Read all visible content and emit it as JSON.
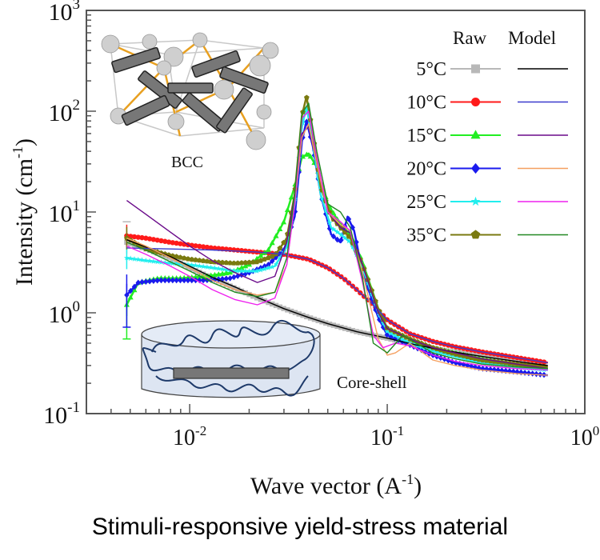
{
  "caption": "Stimuli-responsive yield-stress material",
  "chart_data": {
    "type": "scatter",
    "title": "",
    "xlabel": "Wave vector (A",
    "xlabel_sup": "-1",
    "xlabel_end": ")",
    "ylabel": "Intensity (cm",
    "ylabel_sup": "-1",
    "ylabel_end": ")",
    "xscale": "log",
    "yscale": "log",
    "xlim": [
      0.003,
      1.0
    ],
    "ylim": [
      0.1,
      1000
    ],
    "grid": false,
    "x_ticks": [
      {
        "base": "10",
        "exp": "-2",
        "value": 0.01
      },
      {
        "base": "10",
        "exp": "-1",
        "value": 0.1
      },
      {
        "base": "10",
        "exp": "0",
        "value": 1
      }
    ],
    "y_ticks": [
      {
        "base": "10",
        "exp": "-1",
        "value": 0.1
      },
      {
        "base": "10",
        "exp": "0",
        "value": 1
      },
      {
        "base": "10",
        "exp": "1",
        "value": 10
      },
      {
        "base": "10",
        "exp": "2",
        "value": 100
      },
      {
        "base": "10",
        "exp": "3",
        "value": 1000
      }
    ],
    "legend": {
      "placement": "top-right",
      "header_raw": "Raw",
      "header_model": "Model",
      "entries": [
        {
          "label": "5°C",
          "raw_color": "#b8b8b8",
          "marker": "square",
          "model_color": "#000000"
        },
        {
          "label": "10°C",
          "raw_color": "#ff1a1a",
          "marker": "circle",
          "model_color": "#3a3acc"
        },
        {
          "label": "15°C",
          "raw_color": "#22ee22",
          "marker": "triangle",
          "model_color": "#6a0a8a"
        },
        {
          "label": "20°C",
          "raw_color": "#1a1aee",
          "marker": "diamond",
          "model_color": "#f5a060"
        },
        {
          "label": "25°C",
          "raw_color": "#22eeee",
          "marker": "star",
          "model_color": "#ee22ee"
        },
        {
          "label": "35°C",
          "raw_color": "#7a7a10",
          "marker": "pentagon",
          "model_color": "#228822"
        }
      ]
    },
    "series": [
      {
        "name": "5°C raw",
        "kind": "raw",
        "color": "#b8b8b8",
        "x": [
          0.0048,
          0.006,
          0.008,
          0.01,
          0.013,
          0.017,
          0.022,
          0.03,
          0.04,
          0.05,
          0.07,
          0.1,
          0.14,
          0.2,
          0.3,
          0.45,
          0.65
        ],
        "y": [
          5.0,
          4.3,
          3.5,
          2.8,
          2.2,
          1.75,
          1.4,
          1.1,
          0.9,
          0.78,
          0.65,
          0.56,
          0.48,
          0.42,
          0.37,
          0.33,
          0.3
        ]
      },
      {
        "name": "5°C model",
        "kind": "model",
        "color": "#000000",
        "x": [
          0.0048,
          0.006,
          0.008,
          0.01,
          0.013,
          0.017,
          0.022,
          0.03,
          0.04,
          0.05,
          0.07,
          0.1,
          0.14,
          0.2,
          0.3,
          0.45,
          0.65
        ],
        "y": [
          5.3,
          4.5,
          3.6,
          2.9,
          2.25,
          1.8,
          1.42,
          1.1,
          0.9,
          0.78,
          0.65,
          0.56,
          0.48,
          0.42,
          0.37,
          0.33,
          0.3
        ]
      },
      {
        "name": "10°C raw",
        "kind": "raw",
        "color": "#ff1a1a",
        "x": [
          0.0048,
          0.006,
          0.008,
          0.01,
          0.013,
          0.017,
          0.022,
          0.03,
          0.04,
          0.05,
          0.06,
          0.07,
          0.085,
          0.1,
          0.13,
          0.17,
          0.22,
          0.3,
          0.45,
          0.65
        ],
        "y": [
          5.8,
          5.5,
          5.0,
          4.7,
          4.4,
          4.2,
          4.0,
          3.8,
          3.4,
          2.8,
          2.2,
          1.7,
          1.2,
          0.85,
          0.62,
          0.52,
          0.46,
          0.41,
          0.36,
          0.32
        ]
      },
      {
        "name": "10°C model",
        "kind": "model",
        "color": "#3a3acc",
        "x": [
          0.0048,
          0.006,
          0.008,
          0.01,
          0.013,
          0.017,
          0.022,
          0.03,
          0.04,
          0.05,
          0.06,
          0.07,
          0.085,
          0.1,
          0.13,
          0.17,
          0.22,
          0.3,
          0.45,
          0.65
        ],
        "y": [
          4.4,
          4.35,
          4.3,
          4.25,
          4.2,
          4.1,
          4.0,
          3.8,
          3.4,
          2.8,
          2.2,
          1.7,
          1.2,
          0.85,
          0.62,
          0.52,
          0.46,
          0.41,
          0.36,
          0.32
        ]
      },
      {
        "name": "15°C raw",
        "kind": "raw",
        "color": "#22ee22",
        "x": [
          0.0048,
          0.0055,
          0.007,
          0.009,
          0.012,
          0.016,
          0.02,
          0.025,
          0.03,
          0.034,
          0.037,
          0.04,
          0.044,
          0.05,
          0.058,
          0.065,
          0.075,
          0.09,
          0.1,
          0.13,
          0.17,
          0.22,
          0.3,
          0.45,
          0.65
        ],
        "y": [
          1.2,
          2.0,
          2.2,
          2.2,
          2.3,
          2.5,
          3.0,
          4.2,
          8.0,
          18,
          35,
          38,
          28,
          12,
          7.5,
          6.0,
          3.2,
          1.1,
          0.7,
          0.55,
          0.45,
          0.4,
          0.35,
          0.31,
          0.28
        ]
      },
      {
        "name": "15°C model",
        "kind": "model",
        "color": "#6a0a8a",
        "x": [
          0.0048,
          0.006,
          0.008,
          0.01,
          0.013,
          0.017,
          0.022,
          0.027,
          0.031,
          0.034,
          0.037,
          0.04,
          0.044,
          0.05,
          0.058,
          0.065,
          0.075,
          0.09,
          0.1,
          0.13,
          0.17,
          0.22,
          0.3,
          0.45,
          0.65
        ],
        "y": [
          13,
          9.5,
          6.3,
          4.6,
          3.3,
          2.5,
          2.0,
          2.3,
          5,
          15,
          60,
          70,
          30,
          10,
          7,
          6.2,
          3,
          1.0,
          0.7,
          0.55,
          0.45,
          0.4,
          0.35,
          0.31,
          0.28
        ]
      },
      {
        "name": "20°C raw",
        "kind": "raw",
        "color": "#1a1aee",
        "x": [
          0.0048,
          0.0055,
          0.007,
          0.009,
          0.012,
          0.016,
          0.02,
          0.025,
          0.03,
          0.034,
          0.037,
          0.039,
          0.042,
          0.046,
          0.052,
          0.058,
          0.063,
          0.068,
          0.075,
          0.09,
          0.1,
          0.13,
          0.17,
          0.22,
          0.3,
          0.45,
          0.65
        ],
        "y": [
          1.5,
          2.0,
          2.1,
          2.1,
          2.1,
          2.2,
          2.5,
          3.0,
          4.2,
          9,
          50,
          80,
          45,
          15,
          6.0,
          5.0,
          9.0,
          6.5,
          2.5,
          0.9,
          0.6,
          0.48,
          0.38,
          0.32,
          0.28,
          0.26,
          0.24
        ]
      },
      {
        "name": "20°C model",
        "kind": "model",
        "color": "#f5a060",
        "x": [
          0.0048,
          0.006,
          0.008,
          0.01,
          0.013,
          0.017,
          0.022,
          0.027,
          0.031,
          0.034,
          0.037,
          0.04,
          0.044,
          0.05,
          0.058,
          0.065,
          0.075,
          0.09,
          0.1,
          0.11,
          0.13,
          0.17,
          0.22,
          0.3,
          0.45,
          0.65
        ],
        "y": [
          5.5,
          4.6,
          3.5,
          2.8,
          2.1,
          1.7,
          1.5,
          1.6,
          3,
          12,
          55,
          75,
          30,
          10,
          7.5,
          6.5,
          2.5,
          0.55,
          0.38,
          0.4,
          0.5,
          0.34,
          0.3,
          0.27,
          0.25,
          0.24
        ]
      },
      {
        "name": "25°C raw",
        "kind": "raw",
        "color": "#22eeee",
        "x": [
          0.0048,
          0.006,
          0.008,
          0.01,
          0.013,
          0.017,
          0.022,
          0.027,
          0.031,
          0.034,
          0.037,
          0.039,
          0.042,
          0.046,
          0.052,
          0.058,
          0.065,
          0.075,
          0.09,
          0.1,
          0.13,
          0.17,
          0.22,
          0.3,
          0.45,
          0.65
        ],
        "y": [
          3.5,
          3.3,
          3.1,
          3.0,
          2.8,
          2.6,
          2.6,
          2.9,
          4.5,
          12,
          70,
          110,
          50,
          15,
          7,
          6,
          5,
          2.8,
          1.0,
          0.65,
          0.5,
          0.42,
          0.37,
          0.32,
          0.29,
          0.27
        ]
      },
      {
        "name": "25°C model",
        "kind": "model",
        "color": "#ee22ee",
        "x": [
          0.0048,
          0.006,
          0.008,
          0.01,
          0.013,
          0.017,
          0.022,
          0.027,
          0.031,
          0.034,
          0.037,
          0.04,
          0.044,
          0.05,
          0.058,
          0.065,
          0.075,
          0.085,
          0.095,
          0.11,
          0.13,
          0.17,
          0.22,
          0.3,
          0.45,
          0.65
        ],
        "y": [
          4.6,
          3.8,
          2.9,
          2.3,
          1.7,
          1.35,
          1.2,
          1.4,
          3,
          12,
          85,
          100,
          35,
          10,
          8,
          6.5,
          2.0,
          0.6,
          0.45,
          0.5,
          0.47,
          0.38,
          0.33,
          0.3,
          0.28,
          0.27
        ]
      },
      {
        "name": "35°C raw",
        "kind": "raw",
        "color": "#7a7a10",
        "x": [
          0.0048,
          0.006,
          0.008,
          0.01,
          0.013,
          0.017,
          0.022,
          0.027,
          0.031,
          0.034,
          0.037,
          0.039,
          0.042,
          0.046,
          0.052,
          0.058,
          0.065,
          0.075,
          0.09,
          0.1,
          0.13,
          0.17,
          0.22,
          0.3,
          0.45,
          0.65
        ],
        "y": [
          5.5,
          4.3,
          3.7,
          3.4,
          3.2,
          3.1,
          3.2,
          3.7,
          5.5,
          15,
          90,
          140,
          60,
          18,
          9,
          7,
          5.5,
          3.0,
          1.1,
          0.7,
          0.55,
          0.45,
          0.39,
          0.34,
          0.31,
          0.29
        ]
      },
      {
        "name": "35°C model",
        "kind": "model",
        "color": "#228822",
        "x": [
          0.0048,
          0.006,
          0.008,
          0.01,
          0.013,
          0.017,
          0.022,
          0.027,
          0.031,
          0.034,
          0.037,
          0.04,
          0.044,
          0.05,
          0.058,
          0.065,
          0.075,
          0.085,
          0.1,
          0.12,
          0.14,
          0.17,
          0.22,
          0.3,
          0.45,
          0.65
        ],
        "y": [
          5.0,
          4.2,
          3.2,
          2.6,
          2.0,
          1.6,
          1.45,
          1.6,
          3.5,
          15,
          95,
          120,
          40,
          12,
          10,
          7,
          2.2,
          0.5,
          0.4,
          0.6,
          0.5,
          0.4,
          0.35,
          0.31,
          0.29,
          0.28
        ]
      }
    ],
    "annotations": [
      {
        "text": "BCC",
        "position": "top-left inset"
      },
      {
        "text": "Core-shell",
        "position": "bottom-center inset"
      }
    ]
  }
}
